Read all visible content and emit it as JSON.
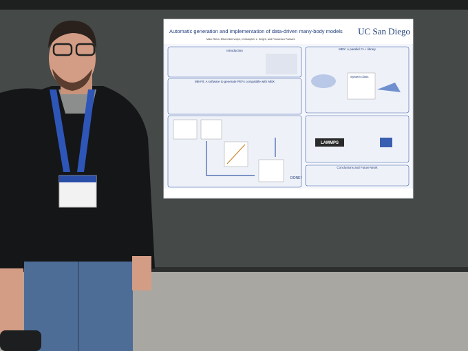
{
  "poster": {
    "title": "Automatic generation and implementation of data-driven many-body models",
    "institution": "UC San Diego",
    "authors": "Marc Riera, Ethan Bull-Vulpe, Christopher L. Knight, and Francesco Paesani",
    "sections": [
      "Introduction",
      "MB-Fit: A software to generate PEFs compatible with MBX",
      "MBX: A parallel C++ library",
      "Conclusions and Future Work"
    ],
    "labels": [
      "System class",
      "LAMMPS",
      "DONE!"
    ]
  }
}
